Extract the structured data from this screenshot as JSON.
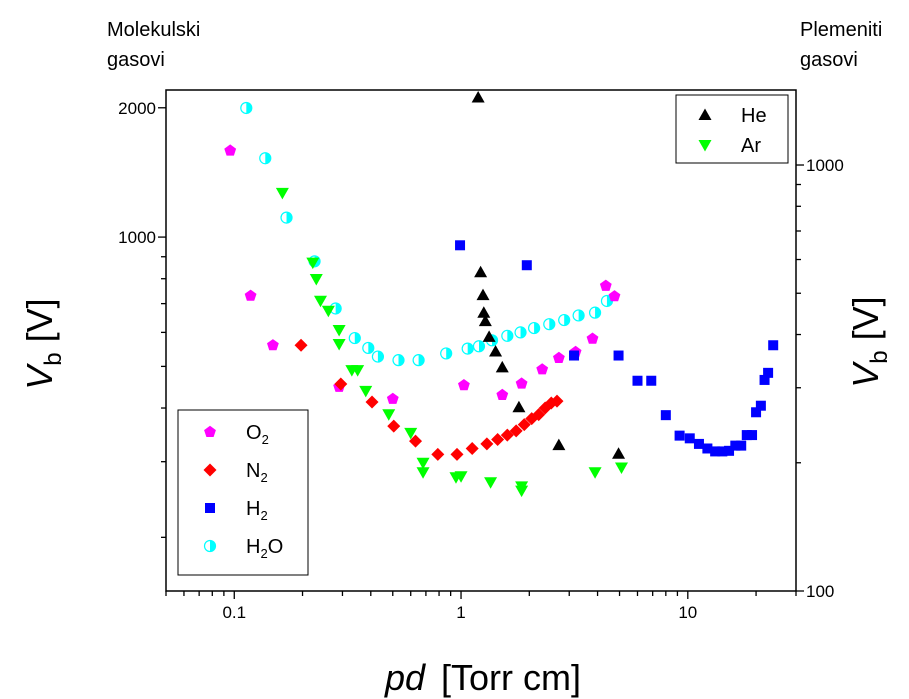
{
  "labels": {
    "left_heading": [
      "Molekulski",
      "gasovi"
    ],
    "right_heading": [
      "Plemeniti",
      "gasovi"
    ],
    "ylabel_main": "V",
    "ylabel_sub": "b",
    "ylabel_unit": "[V]",
    "xlabel_italic": "pd",
    "xlabel_unit": "[Torr cm]"
  },
  "chart_data": {
    "type": "scatter",
    "x_scale": "log",
    "y_scale": "log",
    "xlim": [
      0.05,
      30
    ],
    "ylim_left": [
      150,
      2200
    ],
    "ylim_right": [
      100,
      1500
    ],
    "x_ticks": [
      0.1,
      1,
      10
    ],
    "x_tick_labels": [
      "0.1",
      "1",
      "10"
    ],
    "y_left_ticks": [
      1000,
      2000
    ],
    "y_left_tick_labels": [
      "1000",
      "2000"
    ],
    "y_right_ticks": [
      100,
      1000
    ],
    "y_right_tick_labels": [
      "100",
      "1000"
    ],
    "xlabel": "pd [Torr cm]",
    "ylabel_left": "Vb [V]",
    "ylabel_right": "Vb [V]",
    "grid": false,
    "series": [
      {
        "name": "O2",
        "label": "O",
        "label_sub": "2",
        "axis": "left",
        "marker": "pentagon",
        "color": "#ff00ff",
        "points": [
          [
            0.096,
            1590
          ],
          [
            0.118,
            730
          ],
          [
            0.148,
            560
          ],
          [
            0.29,
            448
          ],
          [
            0.5,
            420
          ],
          [
            1.03,
            452
          ],
          [
            1.52,
            429
          ],
          [
            1.85,
            456
          ],
          [
            2.28,
            492
          ],
          [
            2.7,
            523
          ],
          [
            3.2,
            540
          ],
          [
            3.8,
            580
          ],
          [
            4.35,
            770
          ],
          [
            4.75,
            728
          ]
        ]
      },
      {
        "name": "N2",
        "label": "N",
        "label_sub": "2",
        "axis": "left",
        "marker": "diamond",
        "color": "#ff0000",
        "points": [
          [
            0.197,
            560
          ],
          [
            0.295,
            455
          ],
          [
            0.405,
            413
          ],
          [
            0.505,
            363
          ],
          [
            0.63,
            335
          ],
          [
            0.79,
            312
          ],
          [
            0.96,
            312
          ],
          [
            1.12,
            322
          ],
          [
            1.3,
            330
          ],
          [
            1.45,
            338
          ],
          [
            1.6,
            346
          ],
          [
            1.75,
            354
          ],
          [
            1.9,
            366
          ],
          [
            2.05,
            378
          ],
          [
            2.2,
            386
          ],
          [
            2.35,
            400
          ],
          [
            2.5,
            411
          ],
          [
            2.65,
            415
          ]
        ]
      },
      {
        "name": "H2",
        "label": "H",
        "label_sub": "2",
        "axis": "left",
        "marker": "square",
        "color": "#0000ff",
        "points": [
          [
            0.99,
            957
          ],
          [
            1.95,
            860
          ],
          [
            3.15,
            530
          ],
          [
            4.95,
            530
          ],
          [
            6.0,
            463
          ],
          [
            6.9,
            463
          ],
          [
            8.0,
            385
          ],
          [
            9.2,
            345
          ],
          [
            10.2,
            340
          ],
          [
            11.2,
            330
          ],
          [
            12.2,
            322
          ],
          [
            13.2,
            317
          ],
          [
            14.2,
            317
          ],
          [
            15.2,
            318
          ],
          [
            16.2,
            327
          ],
          [
            17.2,
            327
          ],
          [
            18.2,
            346
          ],
          [
            19.2,
            346
          ],
          [
            20.0,
            391
          ],
          [
            21.0,
            405
          ],
          [
            21.8,
            465
          ],
          [
            22.6,
            483
          ],
          [
            23.8,
            560
          ]
        ]
      },
      {
        "name": "H2O",
        "label": "H",
        "label_sub": "2",
        "label_tail": "O",
        "axis": "left",
        "marker": "half-circle",
        "color": "#00ffff",
        "points": [
          [
            0.113,
            1998
          ],
          [
            0.137,
            1526
          ],
          [
            0.17,
            1110
          ],
          [
            0.226,
            878
          ],
          [
            0.28,
            682
          ],
          [
            0.34,
            582
          ],
          [
            0.39,
            552
          ],
          [
            0.43,
            527
          ],
          [
            0.53,
            517
          ],
          [
            0.65,
            517
          ],
          [
            0.86,
            536
          ],
          [
            1.07,
            550
          ],
          [
            1.2,
            557
          ],
          [
            1.37,
            575
          ],
          [
            1.6,
            589
          ],
          [
            1.83,
            600
          ],
          [
            2.1,
            614
          ],
          [
            2.45,
            627
          ],
          [
            2.85,
            641
          ],
          [
            3.3,
            657
          ],
          [
            3.9,
            667
          ],
          [
            4.4,
            710
          ]
        ]
      },
      {
        "name": "He",
        "label": "He",
        "axis": "right",
        "marker": "triangle-up",
        "color": "#000000",
        "points": [
          [
            1.19,
            1440
          ],
          [
            1.22,
            560
          ],
          [
            1.25,
            495
          ],
          [
            1.26,
            450
          ],
          [
            1.28,
            430
          ],
          [
            1.33,
            395
          ],
          [
            1.42,
            365
          ],
          [
            1.52,
            335
          ],
          [
            1.8,
            270
          ],
          [
            2.7,
            220
          ],
          [
            4.95,
            210
          ]
        ]
      },
      {
        "name": "Ar",
        "label": "Ar",
        "axis": "right",
        "marker": "triangle-down",
        "color": "#00ff00",
        "points": [
          [
            0.163,
            860
          ],
          [
            0.222,
            590
          ],
          [
            0.23,
            540
          ],
          [
            0.24,
            480
          ],
          [
            0.26,
            455
          ],
          [
            0.29,
            410
          ],
          [
            0.29,
            380
          ],
          [
            0.33,
            330
          ],
          [
            0.35,
            330
          ],
          [
            0.38,
            295
          ],
          [
            0.48,
            260
          ],
          [
            0.6,
            235
          ],
          [
            0.68,
            200
          ],
          [
            0.68,
            190
          ],
          [
            0.95,
            185
          ],
          [
            1.0,
            186
          ],
          [
            1.35,
            180
          ],
          [
            1.85,
            176
          ],
          [
            1.85,
            172
          ],
          [
            3.9,
            190
          ],
          [
            5.1,
            195
          ]
        ]
      }
    ],
    "legend_top_right": [
      "He",
      "Ar"
    ],
    "legend_bottom_left": [
      "O2",
      "N2",
      "H2",
      "H2O"
    ]
  }
}
